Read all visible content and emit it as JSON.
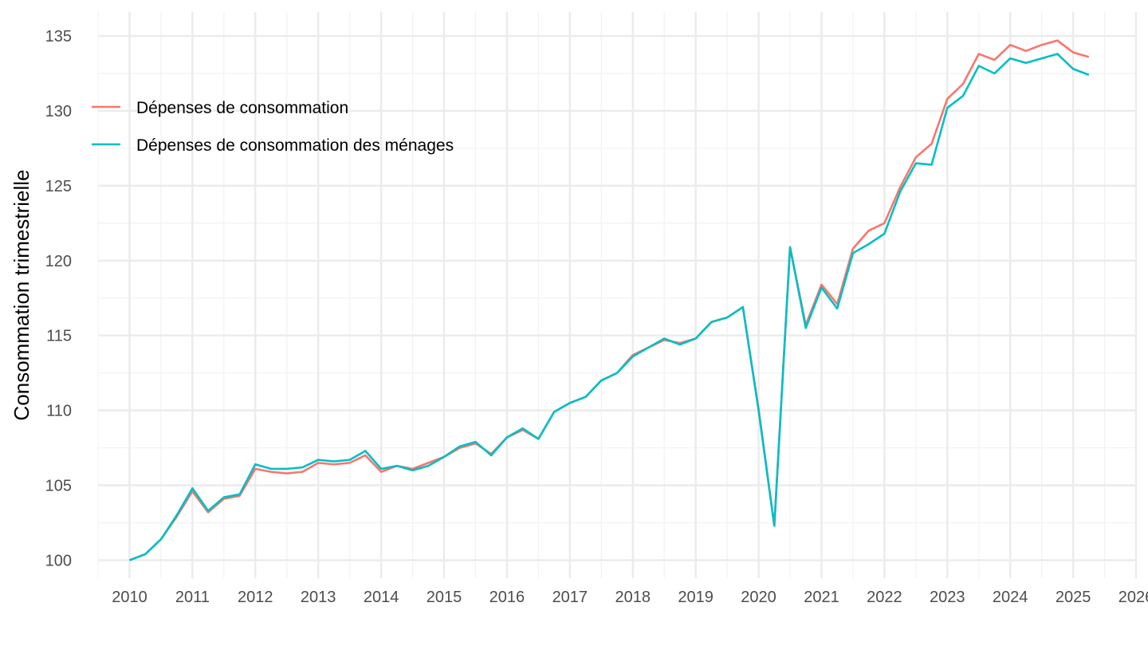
{
  "chart_data": {
    "type": "line",
    "title": "",
    "xlabel": "",
    "ylabel": "Consommation trimestrielle",
    "ylim": [
      98.8,
      136.6
    ],
    "xlim": [
      2009.5,
      2026.0
    ],
    "y_ticks": [
      100,
      105,
      110,
      115,
      120,
      125,
      130,
      135
    ],
    "y_minor_ticks": [
      102.5,
      107.5,
      112.5,
      117.5,
      122.5,
      127.5,
      132.5
    ],
    "x_ticks": [
      2010,
      2011,
      2012,
      2013,
      2014,
      2015,
      2016,
      2017,
      2018,
      2019,
      2020,
      2021,
      2022,
      2023,
      2024,
      2025,
      2026
    ],
    "x_tick_labels": [
      "2010",
      "2011",
      "2012",
      "2013",
      "2014",
      "2015",
      "2016",
      "2017",
      "2018",
      "2019",
      "2020",
      "2021",
      "2022",
      "2023",
      "2024",
      "2025",
      "2026"
    ],
    "legend_position": "top-left",
    "series": [
      {
        "name": "Dépenses de consommation",
        "color": "#F8766D",
        "start": 2010.0,
        "step": 0.25,
        "values": [
          100.0,
          100.4,
          101.4,
          102.9,
          104.6,
          103.2,
          104.1,
          104.3,
          106.1,
          105.9,
          105.8,
          105.9,
          106.5,
          106.4,
          106.5,
          107.0,
          105.9,
          106.3,
          106.1,
          106.5,
          106.9,
          107.5,
          107.8,
          107.1,
          108.2,
          108.7,
          108.1,
          109.9,
          110.5,
          110.9,
          112.0,
          112.5,
          113.7,
          114.2,
          114.7,
          114.5,
          114.8,
          115.9,
          116.2,
          116.9,
          110.1,
          102.3,
          120.9,
          115.7,
          118.4,
          117.1,
          120.8,
          122.0,
          122.5,
          124.9,
          126.9,
          127.8,
          130.8,
          131.8,
          133.8,
          133.4,
          134.4,
          134.0,
          134.4,
          134.7,
          133.9,
          133.6
        ]
      },
      {
        "name": "Dépenses de consommation des ménages",
        "color": "#00BFC4",
        "start": 2010.0,
        "step": 0.25,
        "values": [
          100.0,
          100.4,
          101.4,
          103.0,
          104.8,
          103.3,
          104.2,
          104.4,
          106.4,
          106.1,
          106.1,
          106.2,
          106.7,
          106.6,
          106.7,
          107.3,
          106.1,
          106.3,
          106.0,
          106.3,
          106.9,
          107.6,
          107.9,
          107.0,
          108.2,
          108.8,
          108.1,
          109.9,
          110.5,
          110.9,
          112.0,
          112.5,
          113.6,
          114.2,
          114.8,
          114.4,
          114.8,
          115.9,
          116.2,
          116.9,
          110.0,
          102.3,
          120.9,
          115.5,
          118.2,
          116.8,
          120.5,
          121.1,
          121.8,
          124.6,
          126.5,
          126.4,
          130.2,
          131.0,
          133.0,
          132.5,
          133.5,
          133.2,
          133.5,
          133.8,
          132.8,
          132.4
        ]
      }
    ]
  }
}
